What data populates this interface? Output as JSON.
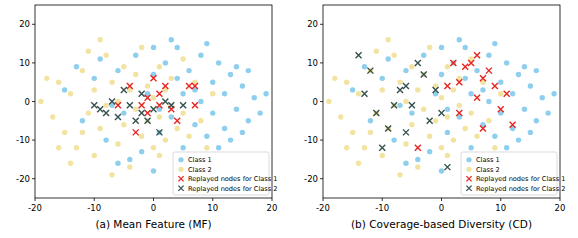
{
  "chart_data": [
    {
      "type": "scatter",
      "xlabel": "(a) Mean Feature (MF)",
      "xlim": [
        -20,
        20
      ],
      "ylim": [
        -25,
        25
      ],
      "xticks": [
        -20,
        -10,
        0,
        10,
        20
      ],
      "yticks": [
        -20,
        -10,
        0,
        10,
        20
      ],
      "legend": "lower right",
      "grid": false,
      "series": [
        {
          "name": "Class 1",
          "color": "#8ecfee",
          "marker": "circle",
          "x": [
            -15,
            -12,
            -10,
            -8,
            -6,
            -5,
            -3,
            -2,
            0,
            1,
            2,
            3,
            4,
            5,
            5,
            6,
            7,
            8,
            8,
            9,
            10,
            10,
            11,
            12,
            12,
            13,
            14,
            15,
            16,
            17,
            18,
            -6,
            3,
            -1,
            1,
            4,
            7,
            9,
            11,
            14,
            -7,
            -9,
            13,
            15,
            0,
            -4,
            0,
            16,
            19,
            -13
          ],
          "values": [
            3,
            -5,
            6,
            -10,
            8,
            -3,
            12,
            -13,
            7,
            -8,
            10,
            -4,
            14,
            2,
            -12,
            8,
            -6,
            12,
            0,
            -9,
            5,
            -3,
            10,
            -7,
            2,
            7,
            -2,
            4,
            -5,
            1,
            -3,
            -16,
            16,
            2,
            -2,
            6,
            3,
            15,
            -12,
            9,
            -1,
            11,
            -10,
            -8,
            -18,
            -15,
            14,
            8,
            2,
            9
          ]
        },
        {
          "name": "Class 2",
          "color": "#f3e3a1",
          "marker": "circle",
          "x": [
            -19,
            -17,
            -16,
            -15,
            -14,
            -13,
            -12,
            -11,
            -10,
            -10,
            -9,
            -8,
            -8,
            -7,
            -6,
            -6,
            -5,
            -5,
            -4,
            -4,
            -3,
            -3,
            -2,
            -2,
            -1,
            -1,
            0,
            0,
            1,
            1,
            2,
            2,
            3,
            3,
            4,
            5,
            5,
            6,
            7,
            8,
            -11,
            -14,
            -18,
            -7,
            9,
            -16,
            -12,
            -9,
            1,
            10
          ],
          "values": [
            0,
            -4,
            5,
            -8,
            2,
            -12,
            8,
            -3,
            -14,
            3,
            -7,
            12,
            -1,
            5,
            -11,
            0,
            9,
            -6,
            3,
            -17,
            -2,
            7,
            -9,
            14,
            4,
            -5,
            -12,
            1,
            9,
            -4,
            3,
            -10,
            -1,
            6,
            -7,
            11,
            -3,
            -9,
            5,
            -5,
            13,
            -16,
            6,
            -19,
            -12,
            -12,
            -8,
            16,
            -14,
            2
          ]
        },
        {
          "name": "Replayed nodes for Class 1",
          "color": "#e8231f",
          "marker": "x",
          "x": [
            -6,
            -4,
            -3,
            -1,
            -1,
            0,
            1,
            1,
            2,
            3,
            4,
            6,
            7,
            7,
            -2
          ],
          "values": [
            -1,
            4,
            -8,
            -3,
            1,
            6,
            2,
            -1,
            4,
            -2,
            -5,
            4,
            4,
            -1,
            -1
          ]
        },
        {
          "name": "Replayed nodes for Class 2",
          "color": "#34504f",
          "marker": "x",
          "x": [
            -10,
            -9,
            -7,
            -6,
            -5,
            -4,
            -3,
            -2,
            -2,
            -1,
            0,
            1,
            2,
            3,
            5,
            -8
          ],
          "values": [
            -1,
            -2,
            0,
            -4,
            3,
            -1,
            -5,
            2,
            -3,
            -5,
            -2,
            -8,
            0,
            -1,
            -1,
            -3
          ]
        }
      ]
    },
    {
      "type": "scatter",
      "xlabel": "(b) Coverage-based Diversity (CD)",
      "xlim": [
        -20,
        20
      ],
      "ylim": [
        -25,
        25
      ],
      "xticks": [
        -20,
        -10,
        0,
        10,
        20
      ],
      "yticks": [
        -20,
        -10,
        0,
        10,
        20
      ],
      "legend": "lower right",
      "grid": false,
      "series": [
        {
          "name": "Class 1",
          "color": "#8ecfee",
          "marker": "circle",
          "x": [
            -15,
            -12,
            -10,
            -8,
            -6,
            -5,
            -3,
            -2,
            0,
            1,
            2,
            3,
            4,
            5,
            5,
            6,
            7,
            8,
            8,
            9,
            10,
            10,
            11,
            12,
            12,
            13,
            14,
            15,
            16,
            17,
            18,
            -6,
            3,
            -1,
            1,
            4,
            7,
            9,
            11,
            14,
            -7,
            -9,
            13,
            15,
            0,
            -4,
            0,
            16,
            19,
            -13
          ],
          "values": [
            3,
            -5,
            6,
            -10,
            8,
            -3,
            12,
            -13,
            7,
            -8,
            10,
            -4,
            14,
            2,
            -12,
            8,
            -6,
            12,
            0,
            -9,
            5,
            -3,
            10,
            -7,
            2,
            7,
            -2,
            4,
            -5,
            1,
            -3,
            -16,
            16,
            2,
            -2,
            6,
            3,
            15,
            -12,
            9,
            -1,
            11,
            -10,
            -8,
            -18,
            -15,
            14,
            8,
            2,
            9
          ]
        },
        {
          "name": "Class 2",
          "color": "#f3e3a1",
          "marker": "circle",
          "x": [
            -19,
            -17,
            -16,
            -15,
            -14,
            -13,
            -12,
            -11,
            -10,
            -10,
            -9,
            -8,
            -8,
            -7,
            -6,
            -6,
            -5,
            -5,
            -4,
            -4,
            -3,
            -3,
            -2,
            -2,
            -1,
            -1,
            0,
            0,
            1,
            1,
            2,
            2,
            3,
            3,
            4,
            5,
            5,
            6,
            7,
            8,
            -11,
            -14,
            -18,
            -7,
            9,
            -16,
            -12,
            -9,
            1,
            10
          ],
          "values": [
            0,
            -4,
            5,
            -8,
            2,
            -12,
            8,
            -3,
            -14,
            3,
            -7,
            12,
            -1,
            5,
            -11,
            0,
            9,
            -6,
            3,
            -17,
            -2,
            7,
            -9,
            14,
            4,
            -5,
            -12,
            1,
            9,
            -4,
            3,
            -10,
            -1,
            6,
            -7,
            11,
            -3,
            -9,
            5,
            -5,
            13,
            -16,
            6,
            -19,
            -12,
            -12,
            -8,
            16,
            -14,
            2
          ]
        },
        {
          "name": "Replayed nodes for Class 1",
          "color": "#e8231f",
          "marker": "x",
          "x": [
            1,
            2,
            3,
            4,
            5,
            6,
            7,
            8,
            9,
            10,
            11,
            12,
            -4,
            3,
            7,
            6
          ],
          "values": [
            4,
            10,
            5,
            9,
            10,
            12,
            6,
            8,
            4,
            -2,
            2,
            -6,
            -12,
            -3,
            -7,
            1
          ]
        },
        {
          "name": "Replayed nodes for Class 2",
          "color": "#34504f",
          "marker": "x",
          "x": [
            -14,
            -12,
            -13,
            -11,
            -10,
            -9,
            -8,
            -7,
            -6,
            -5,
            -4,
            -3,
            -2,
            -1,
            0,
            1,
            -6
          ],
          "values": [
            12,
            8,
            2,
            -3,
            -12,
            -7,
            -1,
            3,
            4,
            -1,
            10,
            7,
            -5,
            3,
            -3,
            -17,
            -8
          ]
        }
      ]
    }
  ]
}
